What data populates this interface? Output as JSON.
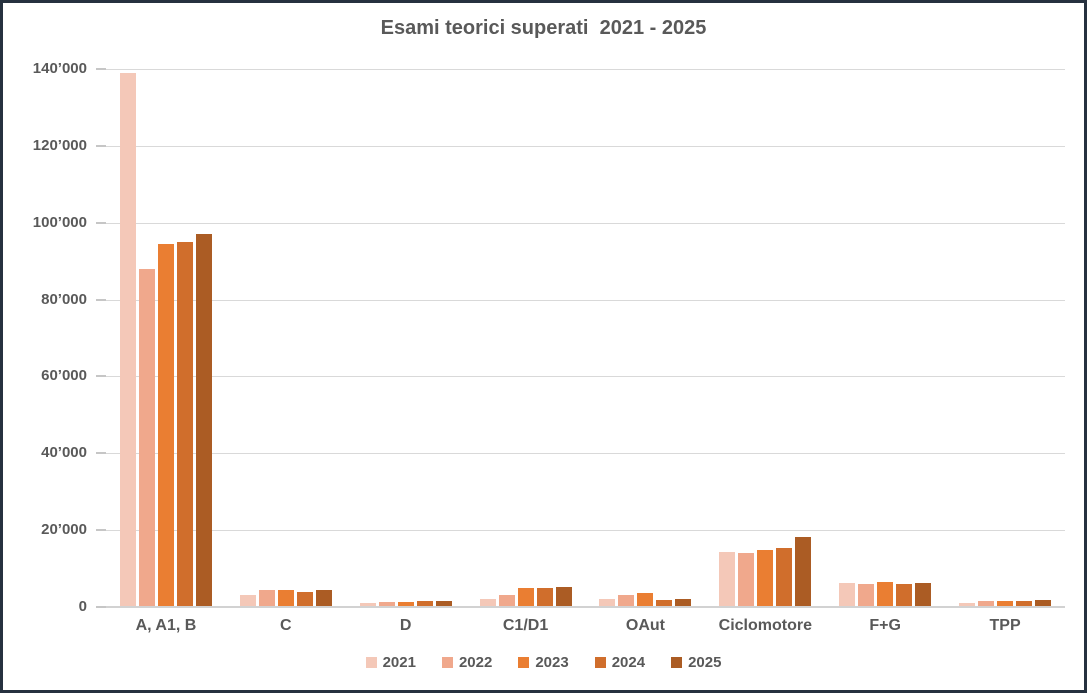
{
  "chart_data": {
    "type": "bar",
    "title": "Esami teorici superati  2021 - 2025",
    "categories": [
      "A, A1, B",
      "C",
      "D",
      "C1/D1",
      "OAut",
      "Ciclomotore",
      "F+G",
      "TPP"
    ],
    "series": [
      {
        "name": "2021",
        "color": "#f4c8b8",
        "values": [
          139000,
          3000,
          1100,
          2000,
          2000,
          14300,
          6300,
          1100
        ]
      },
      {
        "name": "2022",
        "color": "#f0a88c",
        "values": [
          88000,
          4300,
          1300,
          3200,
          3000,
          14000,
          6000,
          1500
        ]
      },
      {
        "name": "2023",
        "color": "#ea7e32",
        "values": [
          94500,
          4500,
          1300,
          4900,
          3600,
          14900,
          6600,
          1600
        ]
      },
      {
        "name": "2024",
        "color": "#d06e2c",
        "values": [
          95000,
          4000,
          1500,
          4900,
          1800,
          15400,
          5900,
          1500
        ]
      },
      {
        "name": "2025",
        "color": "#ab5c24",
        "values": [
          97000,
          4300,
          1500,
          5100,
          2100,
          18100,
          6200,
          1800
        ]
      }
    ],
    "ylim": [
      0,
      140000
    ],
    "y_tick_step": 20000,
    "y_tick_labels": [
      "0",
      "20’000",
      "40’000",
      "60’000",
      "80’000",
      "100’000",
      "120’000",
      "140’000"
    ],
    "grid": true,
    "legend_position": "bottom",
    "colors": {
      "text": "#595959",
      "gridline": "#d9d9d9",
      "axis_line": "#d2d2d2",
      "frame_border": "#26313f",
      "background": "#ffffff"
    }
  }
}
